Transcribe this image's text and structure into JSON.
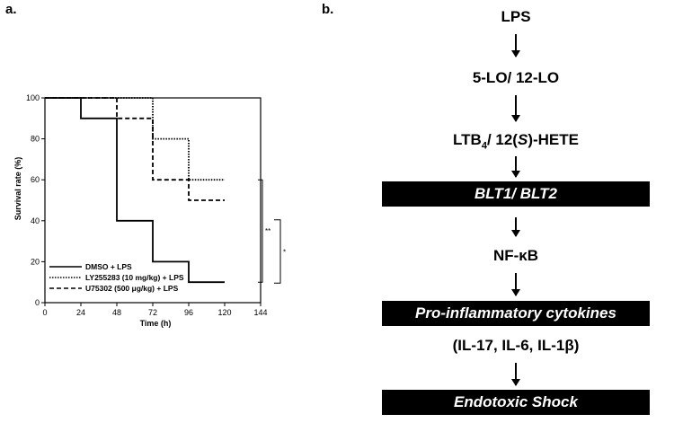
{
  "panels": {
    "a_label": "a.",
    "b_label": "b."
  },
  "chart_data": {
    "type": "line",
    "xlabel": "Time (h)",
    "ylabel": "Survival rate (%)",
    "xlim": [
      0,
      144
    ],
    "ylim": [
      0,
      100
    ],
    "xticks": [
      0,
      24,
      48,
      72,
      96,
      120,
      144
    ],
    "yticks": [
      0,
      20,
      40,
      60,
      80,
      100
    ],
    "grid": false,
    "legend_position": "bottom-left",
    "step": true,
    "series": [
      {
        "name": "DMSO + LPS",
        "style": "solid",
        "x": [
          0,
          24,
          48,
          72,
          96,
          120
        ],
        "y": [
          100,
          90,
          40,
          20,
          10,
          10
        ]
      },
      {
        "name": "LY255283 (10 mg/kg) + LPS",
        "style": "dotted",
        "x": [
          0,
          72,
          96,
          120
        ],
        "y": [
          100,
          80,
          60,
          60
        ]
      },
      {
        "name": "U75302 (500 μg/kg) + LPS",
        "style": "dashed",
        "x": [
          0,
          48,
          72,
          96,
          120
        ],
        "y": [
          100,
          90,
          60,
          50,
          50
        ]
      }
    ],
    "significance": [
      {
        "label": "**",
        "between": [
          "LY255283 (10 mg/kg) + LPS",
          "DMSO + LPS"
        ]
      },
      {
        "label": "*",
        "between": [
          "U75302 (500 μg/kg) + LPS",
          "DMSO + LPS"
        ]
      }
    ]
  },
  "flow": {
    "lps": "LPS",
    "lo": "5-LO/ 12-LO",
    "ltb4_pre": "LTB",
    "ltb4_sub": "4",
    "ltb4_mid": "/ 12(",
    "ltb4_s": "S",
    "ltb4_post": ")-HETE",
    "blt": "BLT1/ BLT2",
    "nfkb": "NF-κB",
    "cytokines": "Pro-inflammatory cytokines",
    "il": "(IL-17, IL-6, IL-1β)",
    "shock": "Endotoxic Shock"
  }
}
